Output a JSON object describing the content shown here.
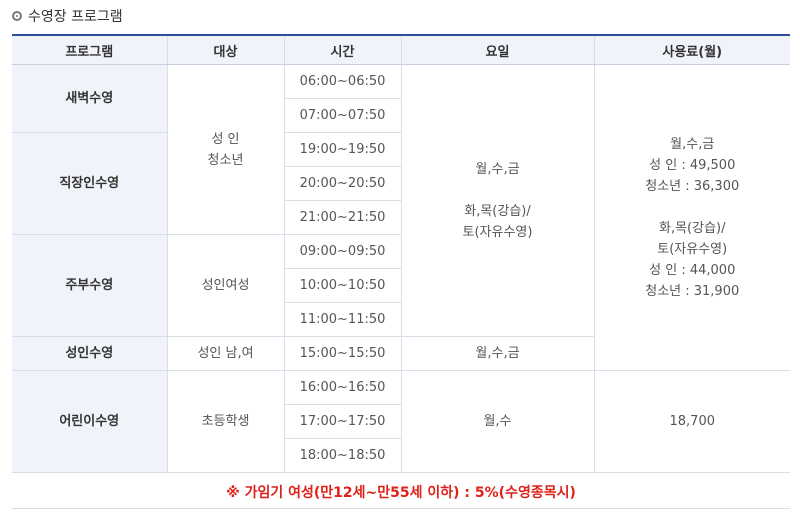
{
  "section": {
    "title": "수영장 프로그램"
  },
  "headers": {
    "program": "프로그램",
    "target": "대상",
    "time": "시간",
    "days": "요일",
    "fee": "사용료(월)"
  },
  "programs": {
    "dawn": "새벽수영",
    "worker": "직장인수영",
    "housewife": "주부수영",
    "adult": "성인수영",
    "child": "어린이수영"
  },
  "targets": {
    "adult_line1": "성 인",
    "adult_line2": "청소년",
    "housewife": "성인여성",
    "adult_mixed": "성인 남,여",
    "child": "초등학생"
  },
  "times": [
    "06:00~06:50",
    "07:00~07:50",
    "19:00~19:50",
    "20:00~20:50",
    "21:00~21:50",
    "09:00~09:50",
    "10:00~10:50",
    "11:00~11:50",
    "15:00~15:50",
    "16:00~16:50",
    "17:00~17:50",
    "18:00~18:50"
  ],
  "days": {
    "main_line1": "월,수,금",
    "main_line2": "화,목(강습)/",
    "main_line3": "토(자유수영)",
    "adult": "월,수,금",
    "child": "월,수"
  },
  "fees": {
    "main_line1": "월,수,금",
    "main_line2": "성 인 : 49,500",
    "main_line3": "청소년 : 36,300",
    "main_line4": "화,목(강습)/",
    "main_line5": "토(자유수영)",
    "main_line6": "성 인 : 44,000",
    "main_line7": "청소년 : 31,900",
    "child": "18,700"
  },
  "note": "※ 가임기 여성(만12세~만55세 이하) : 5%(수영종목시)",
  "colors": {
    "header_border": "#2c4f9c",
    "header_bg": "#f0f3fa",
    "note": "#e0211a"
  }
}
